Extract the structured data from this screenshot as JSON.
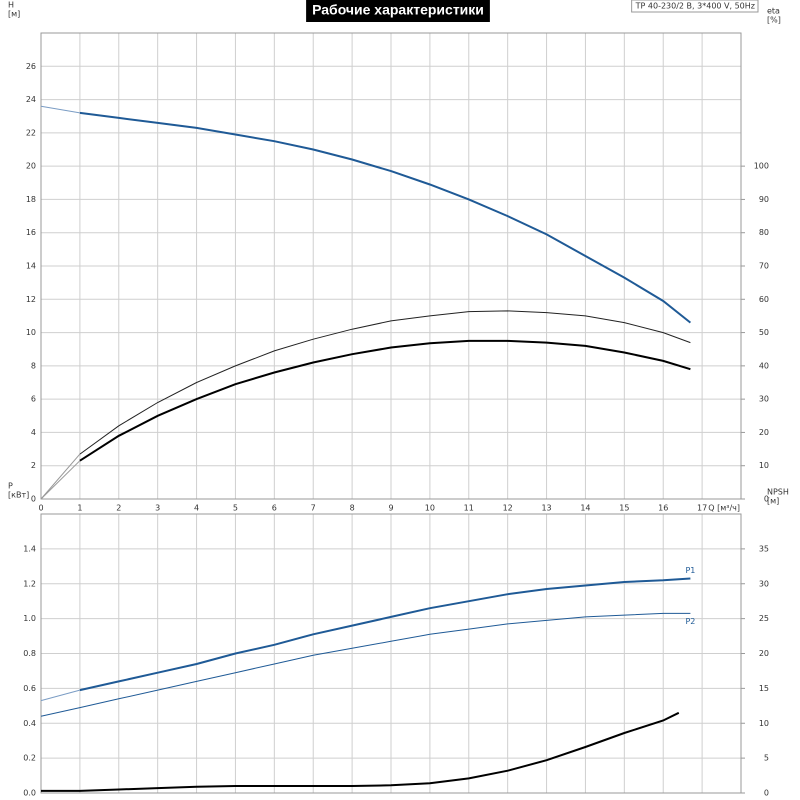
{
  "chart_data": [
    {
      "type": "line",
      "title": "Рабочие характеристики",
      "subtitle": "TP 40-230/2 B, 3*400 V, 50Hz",
      "y_label": [
        "H",
        "[м]"
      ],
      "y2_label": [
        "eta",
        "[%]"
      ],
      "x_label": "Q [м³/ч]",
      "xlim": [
        0,
        18
      ],
      "xticks": [
        0,
        1,
        2,
        3,
        4,
        5,
        6,
        7,
        8,
        9,
        10,
        11,
        12,
        13,
        14,
        15,
        16,
        17
      ],
      "ylim": [
        0,
        28
      ],
      "yticks": [
        0,
        2,
        4,
        6,
        8,
        10,
        12,
        14,
        16,
        18,
        20,
        22,
        24,
        26
      ],
      "y2lim": [
        0,
        140
      ],
      "y2ticks": [
        0,
        10,
        20,
        30,
        40,
        50,
        60,
        70,
        80,
        90,
        100
      ],
      "grid": true,
      "series": [
        {
          "color": "#7a9cc4",
          "linewidth": 1,
          "x": [
            0,
            1
          ],
          "values": [
            23.6,
            23.2
          ]
        },
        {
          "color": "#1f5a96",
          "linewidth": 2,
          "x": [
            1,
            2,
            3,
            4,
            5,
            6,
            7,
            8,
            9,
            10,
            11,
            12,
            13,
            14,
            15,
            16,
            16.7
          ],
          "values": [
            23.2,
            22.9,
            22.6,
            22.3,
            21.9,
            21.5,
            21.0,
            20.4,
            19.7,
            18.9,
            18.0,
            17.0,
            15.9,
            14.6,
            13.3,
            11.9,
            10.6
          ]
        },
        {
          "color": "#999999",
          "linewidth": 1,
          "axis": "y2",
          "x": [
            0,
            1
          ],
          "values": [
            0,
            13.5
          ]
        },
        {
          "color": "#222222",
          "linewidth": 1,
          "axis": "y2",
          "x": [
            1,
            2,
            3,
            4,
            5,
            6,
            7,
            8,
            9,
            10,
            11,
            12,
            13,
            14,
            15,
            16,
            16.7
          ],
          "values": [
            13.5,
            22,
            29,
            35,
            40,
            44.5,
            48,
            51,
            53.5,
            55,
            56.3,
            56.5,
            56,
            55,
            53,
            50,
            47
          ]
        },
        {
          "color": "#999999",
          "linewidth": 1,
          "axis": "y2",
          "x": [
            0,
            1
          ],
          "values": [
            0,
            11.5
          ]
        },
        {
          "color": "#000000",
          "linewidth": 2,
          "axis": "y2",
          "x": [
            1,
            2,
            3,
            4,
            5,
            6,
            7,
            8,
            9,
            10,
            11,
            12,
            13,
            14,
            15,
            16,
            16.7
          ],
          "values": [
            11.5,
            19,
            25,
            30,
            34.5,
            38,
            41,
            43.5,
            45.5,
            46.8,
            47.5,
            47.5,
            47,
            46,
            44,
            41.5,
            39
          ]
        }
      ]
    },
    {
      "type": "line",
      "y_label": [
        "P",
        "[кВт]"
      ],
      "y2_label": [
        "NPSH",
        "[м]"
      ],
      "xlim": [
        0,
        18
      ],
      "xticks": [
        0,
        1,
        2,
        3,
        4,
        5,
        6,
        7,
        8,
        9,
        10,
        11,
        12,
        13,
        14,
        15,
        16,
        17
      ],
      "ylim": [
        0,
        1.6
      ],
      "yticks": [
        {
          "value": 0,
          "label": "0.0"
        },
        0.2,
        0.4,
        0.6,
        0.8,
        {
          "value": 1,
          "label": "1.0"
        },
        1.2,
        1.4
      ],
      "y2lim": [
        0,
        40
      ],
      "y2ticks": [
        0,
        5,
        10,
        15,
        20,
        25,
        30,
        35
      ],
      "grid": true,
      "series": [
        {
          "color": "#7a9cc4",
          "linewidth": 1,
          "x": [
            0,
            1
          ],
          "values": [
            0.53,
            0.59
          ]
        },
        {
          "name": "P1",
          "color": "#1f5a96",
          "linewidth": 2,
          "x": [
            1,
            2,
            3,
            4,
            5,
            6,
            7,
            8,
            9,
            10,
            11,
            12,
            13,
            14,
            15,
            16,
            16.7
          ],
          "values": [
            0.59,
            0.64,
            0.69,
            0.74,
            0.8,
            0.85,
            0.91,
            0.96,
            1.01,
            1.06,
            1.1,
            1.14,
            1.17,
            1.19,
            1.21,
            1.22,
            1.23
          ]
        },
        {
          "name": "P2",
          "color": "#1f5a96",
          "linewidth": 1,
          "x": [
            0,
            1,
            2,
            3,
            4,
            5,
            6,
            7,
            8,
            9,
            10,
            11,
            12,
            13,
            14,
            15,
            16,
            16.7
          ],
          "values": [
            0.44,
            0.49,
            0.54,
            0.59,
            0.64,
            0.69,
            0.74,
            0.79,
            0.83,
            0.87,
            0.91,
            0.94,
            0.97,
            0.99,
            1.01,
            1.02,
            1.03,
            1.03
          ]
        },
        {
          "color": "#000000",
          "linewidth": 2,
          "axis": "y2",
          "x": [
            0,
            1,
            2,
            3,
            4,
            5,
            6,
            7,
            8,
            9,
            10,
            11,
            12,
            13,
            14,
            15,
            16,
            16.4
          ],
          "values": [
            0.3,
            0.3,
            0.5,
            0.7,
            0.9,
            1.0,
            1.0,
            1.0,
            1.0,
            1.1,
            1.4,
            2.1,
            3.2,
            4.7,
            6.6,
            8.6,
            10.4,
            11.5
          ]
        }
      ]
    }
  ]
}
